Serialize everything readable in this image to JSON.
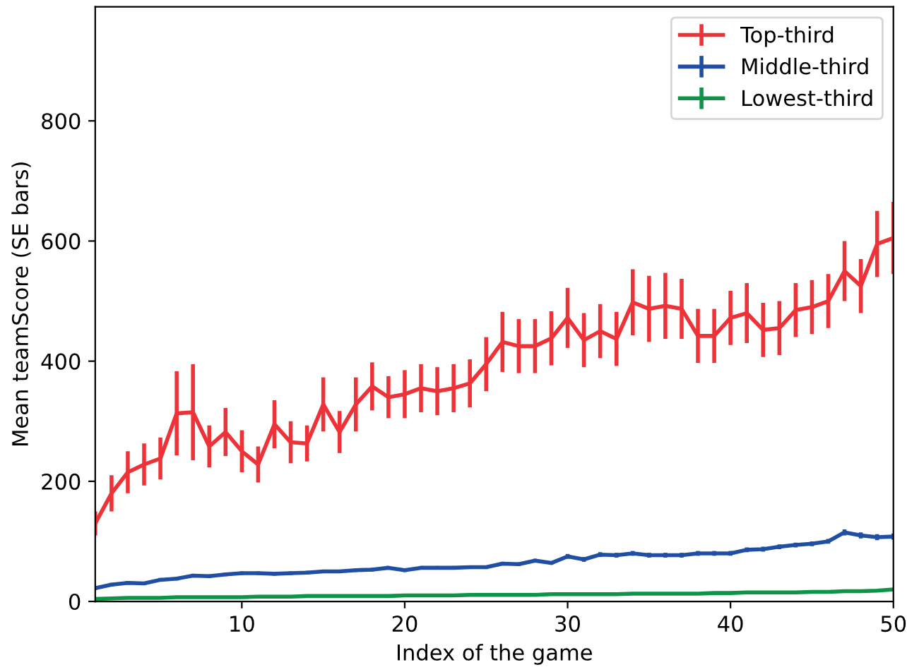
{
  "chart_data": {
    "type": "line",
    "xlabel": "Index of the game",
    "ylabel": "Mean teamScore (SE bars)",
    "x": [
      1,
      2,
      3,
      4,
      5,
      6,
      7,
      8,
      9,
      10,
      11,
      12,
      13,
      14,
      15,
      16,
      17,
      18,
      19,
      20,
      21,
      22,
      23,
      24,
      25,
      26,
      27,
      28,
      29,
      30,
      31,
      32,
      33,
      34,
      35,
      36,
      37,
      38,
      39,
      40,
      41,
      42,
      43,
      44,
      45,
      46,
      47,
      48,
      49,
      50
    ],
    "series": [
      {
        "name": "Top-third",
        "color": "#ee3338",
        "values": [
          130,
          180,
          215,
          228,
          238,
          313,
          315,
          258,
          282,
          250,
          228,
          295,
          265,
          263,
          328,
          282,
          328,
          358,
          340,
          345,
          355,
          350,
          355,
          363,
          395,
          432,
          425,
          425,
          438,
          472,
          435,
          450,
          437,
          498,
          487,
          492,
          487,
          442,
          442,
          472,
          480,
          452,
          455,
          485,
          490,
          500,
          550,
          525,
          595,
          605
        ],
        "errors": [
          20,
          30,
          35,
          35,
          35,
          70,
          80,
          35,
          40,
          35,
          30,
          40,
          35,
          30,
          45,
          35,
          45,
          40,
          35,
          40,
          40,
          40,
          40,
          40,
          45,
          50,
          45,
          45,
          45,
          50,
          45,
          45,
          45,
          55,
          55,
          55,
          50,
          45,
          45,
          45,
          50,
          45,
          45,
          45,
          45,
          45,
          50,
          45,
          55,
          60
        ]
      },
      {
        "name": "Middle-third",
        "color": "#1f4ea3",
        "values": [
          22,
          28,
          31,
          30,
          36,
          38,
          43,
          42,
          45,
          47,
          47,
          46,
          47,
          48,
          50,
          50,
          52,
          53,
          56,
          52,
          56,
          56,
          56,
          57,
          57,
          63,
          62,
          68,
          64,
          75,
          70,
          78,
          77,
          80,
          77,
          77,
          77,
          80,
          80,
          80,
          86,
          87,
          91,
          94,
          96,
          100,
          115,
          110,
          107,
          108
        ],
        "errors": [
          3,
          3,
          3,
          3,
          3,
          3,
          3,
          3,
          3,
          3,
          3,
          3,
          3,
          3,
          3,
          3,
          3,
          3,
          3,
          3,
          3,
          3,
          3,
          3,
          3,
          3,
          3,
          3,
          3,
          4,
          4,
          4,
          4,
          4,
          4,
          4,
          4,
          4,
          4,
          4,
          4,
          4,
          4,
          4,
          4,
          4,
          5,
          5,
          5,
          5
        ]
      },
      {
        "name": "Lowest-third",
        "color": "#0d9446",
        "values": [
          4,
          5,
          6,
          6,
          6,
          7,
          7,
          7,
          7,
          7,
          8,
          8,
          8,
          9,
          9,
          9,
          9,
          9,
          9,
          10,
          10,
          10,
          10,
          11,
          11,
          11,
          11,
          11,
          12,
          12,
          12,
          12,
          12,
          13,
          13,
          13,
          13,
          13,
          14,
          14,
          15,
          15,
          15,
          15,
          16,
          16,
          17,
          17,
          18,
          20
        ],
        "errors": [
          1,
          1,
          1,
          1,
          1,
          1,
          1,
          1,
          1,
          1,
          1,
          1,
          1,
          1,
          1,
          1,
          1,
          1,
          1,
          1,
          1,
          1,
          1,
          1,
          1,
          1,
          1,
          1,
          1,
          1,
          1,
          1,
          1,
          1,
          1,
          1,
          1,
          1,
          1,
          1,
          1,
          1,
          1,
          1,
          1,
          1,
          1,
          1,
          1,
          1
        ]
      }
    ],
    "xlim": [
      1,
      50
    ],
    "ylim": [
      0,
      990
    ],
    "xticks": [
      10,
      20,
      30,
      40,
      50
    ],
    "yticks": [
      0,
      200,
      400,
      600,
      800
    ],
    "grid": false,
    "legend": "top right",
    "marker": "none",
    "line_style": "solid"
  }
}
